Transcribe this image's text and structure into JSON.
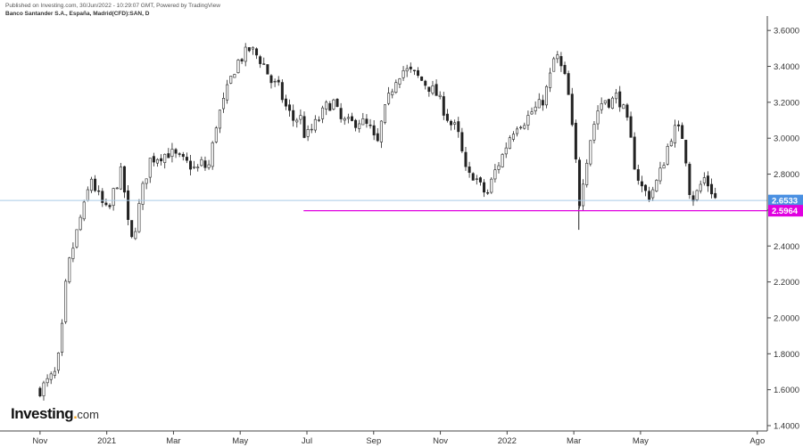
{
  "header": {
    "published": "Published on Investing.com, 30/Jun/2022 - 10:29:07 GMT, Powered by TradingView",
    "instrument": "Banco Santander S.A., España, Madrid(CFD):SAN, D"
  },
  "logo": {
    "brand": "Investing",
    "suffix": "com"
  },
  "chart_data": {
    "type": "candlestick",
    "ylim": [
      1.4,
      3.7
    ],
    "y_ticks": [
      "3.6000",
      "3.4000",
      "3.2000",
      "3.0000",
      "2.8000",
      "2.6000",
      "2.4000",
      "2.2000",
      "2.0000",
      "1.8000",
      "1.6000",
      "1.4000"
    ],
    "x_ticks": [
      "Nov",
      "2021",
      "Mar",
      "May",
      "Jul",
      "Sep",
      "Nov",
      "2022",
      "Mar",
      "May",
      "Ago"
    ],
    "x_tick_months": [
      0,
      2,
      4,
      6,
      8,
      10,
      12,
      14,
      16,
      18,
      21.5
    ],
    "x_range_months": [
      -1.2,
      21.8
    ],
    "last_price": {
      "label": "2.6533",
      "value": 2.6533,
      "color": "#4a90e2"
    },
    "support_line": {
      "label": "2.5964",
      "value": 2.5964,
      "color": "#e000e0",
      "from_month": 7.9
    },
    "closes": [
      [
        0.0,
        1.6
      ],
      [
        0.3,
        1.66
      ],
      [
        0.5,
        1.7
      ],
      [
        0.7,
        2.0
      ],
      [
        0.8,
        2.25
      ],
      [
        1.0,
        2.4
      ],
      [
        1.2,
        2.55
      ],
      [
        1.4,
        2.66
      ],
      [
        1.5,
        2.8
      ],
      [
        1.65,
        2.72
      ],
      [
        1.9,
        2.62
      ],
      [
        2.05,
        2.58
      ],
      [
        2.2,
        2.7
      ],
      [
        2.45,
        2.82
      ],
      [
        2.6,
        2.6
      ],
      [
        2.7,
        2.4
      ],
      [
        2.85,
        2.5
      ],
      [
        3.05,
        2.7
      ],
      [
        3.3,
        2.88
      ],
      [
        3.55,
        2.9
      ],
      [
        3.9,
        2.92
      ],
      [
        4.2,
        2.88
      ],
      [
        4.5,
        2.85
      ],
      [
        4.7,
        2.82
      ],
      [
        4.9,
        2.88
      ],
      [
        5.0,
        2.8
      ],
      [
        5.1,
        2.88
      ],
      [
        5.3,
        3.1
      ],
      [
        5.5,
        3.2
      ],
      [
        5.7,
        3.32
      ],
      [
        5.9,
        3.42
      ],
      [
        6.1,
        3.46
      ],
      [
        6.3,
        3.5
      ],
      [
        6.55,
        3.45
      ],
      [
        6.75,
        3.4
      ],
      [
        6.9,
        3.32
      ],
      [
        7.15,
        3.28
      ],
      [
        7.35,
        3.18
      ],
      [
        7.6,
        3.1
      ],
      [
        7.8,
        3.12
      ],
      [
        7.95,
        3.0
      ],
      [
        8.15,
        3.05
      ],
      [
        8.4,
        3.12
      ],
      [
        8.6,
        3.18
      ],
      [
        8.8,
        3.2
      ],
      [
        9.0,
        3.1
      ],
      [
        9.3,
        3.08
      ],
      [
        9.6,
        3.1
      ],
      [
        9.9,
        3.05
      ],
      [
        10.1,
        2.95
      ],
      [
        10.25,
        3.1
      ],
      [
        10.5,
        3.25
      ],
      [
        10.7,
        3.35
      ],
      [
        10.9,
        3.38
      ],
      [
        11.2,
        3.36
      ],
      [
        11.45,
        3.32
      ],
      [
        11.7,
        3.28
      ],
      [
        11.9,
        3.24
      ],
      [
        12.1,
        3.16
      ],
      [
        12.3,
        3.08
      ],
      [
        12.5,
        3.05
      ],
      [
        12.8,
        2.78
      ],
      [
        13.0,
        2.8
      ],
      [
        13.2,
        2.73
      ],
      [
        13.4,
        2.68
      ],
      [
        13.6,
        2.8
      ],
      [
        13.85,
        2.9
      ],
      [
        14.1,
        3.02
      ],
      [
        14.3,
        3.08
      ],
      [
        14.55,
        3.1
      ],
      [
        14.75,
        3.15
      ],
      [
        14.95,
        3.18
      ],
      [
        15.1,
        3.22
      ],
      [
        15.3,
        3.35
      ],
      [
        15.45,
        3.48
      ],
      [
        15.6,
        3.4
      ],
      [
        15.8,
        3.3
      ],
      [
        15.95,
        3.05
      ],
      [
        16.1,
        2.8
      ],
      [
        16.15,
        2.62
      ],
      [
        16.3,
        2.8
      ],
      [
        16.5,
        3.0
      ],
      [
        16.7,
        3.15
      ],
      [
        16.9,
        3.22
      ],
      [
        17.1,
        3.2
      ],
      [
        17.3,
        3.24
      ],
      [
        17.45,
        3.18
      ],
      [
        17.65,
        3.05
      ],
      [
        17.85,
        2.82
      ],
      [
        18.05,
        2.72
      ],
      [
        18.25,
        2.68
      ],
      [
        18.45,
        2.74
      ],
      [
        18.65,
        2.84
      ],
      [
        18.85,
        2.98
      ],
      [
        19.0,
        3.05
      ],
      [
        19.15,
        3.04
      ],
      [
        19.3,
        3.0
      ],
      [
        19.45,
        2.72
      ],
      [
        19.6,
        2.66
      ],
      [
        19.75,
        2.72
      ],
      [
        19.9,
        2.78
      ],
      [
        20.1,
        2.72
      ],
      [
        20.25,
        2.66
      ]
    ]
  }
}
